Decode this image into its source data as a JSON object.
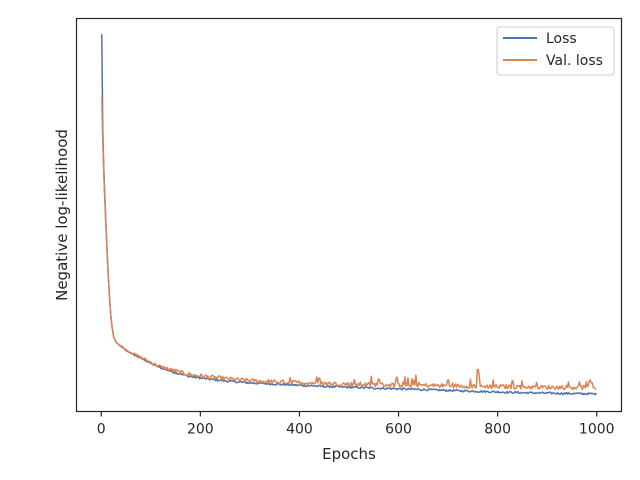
{
  "chart_data": {
    "type": "line",
    "title": "",
    "xlabel": "Epochs",
    "ylabel": "Negative log-likelihood",
    "xlim": [
      -50,
      1050
    ],
    "ylim": [
      0.0,
      1.0
    ],
    "y_tick_labels_shown": false,
    "x_ticks": [
      0,
      200,
      400,
      600,
      800,
      1000
    ],
    "x_tick_labels": [
      "0",
      "200",
      "400",
      "600",
      "800",
      "1000"
    ],
    "grid": false,
    "legend_position": "top-right",
    "series": [
      {
        "name": "Loss",
        "color": "#4c72b0",
        "x": [
          1,
          2,
          3,
          5,
          8,
          12,
          16,
          20,
          25,
          30,
          40,
          50,
          60,
          80,
          100,
          120,
          150,
          180,
          220,
          260,
          300,
          350,
          400,
          450,
          500,
          550,
          600,
          650,
          700,
          750,
          800,
          850,
          900,
          950,
          1000
        ],
        "y": [
          0.96,
          0.79,
          0.72,
          0.62,
          0.52,
          0.4,
          0.3,
          0.23,
          0.19,
          0.175,
          0.165,
          0.155,
          0.148,
          0.135,
          0.122,
          0.11,
          0.098,
          0.088,
          0.081,
          0.076,
          0.072,
          0.069,
          0.066,
          0.063,
          0.061,
          0.059,
          0.057,
          0.055,
          0.053,
          0.051,
          0.049,
          0.047,
          0.046,
          0.045,
          0.044
        ]
      },
      {
        "name": "Val. loss",
        "color": "#dd8452",
        "x": [
          1,
          2,
          3,
          5,
          8,
          12,
          16,
          20,
          25,
          30,
          40,
          50,
          60,
          80,
          100,
          120,
          150,
          180,
          220,
          260,
          300,
          350,
          400,
          450,
          500,
          550,
          600,
          650,
          700,
          750,
          800,
          850,
          900,
          950,
          1000
        ],
        "y": [
          0.8,
          0.74,
          0.69,
          0.61,
          0.51,
          0.4,
          0.3,
          0.23,
          0.19,
          0.176,
          0.166,
          0.156,
          0.149,
          0.137,
          0.124,
          0.112,
          0.101,
          0.092,
          0.086,
          0.081,
          0.077,
          0.074,
          0.072,
          0.07,
          0.068,
          0.067,
          0.066,
          0.065,
          0.064,
          0.063,
          0.062,
          0.061,
          0.06,
          0.06,
          0.059
        ],
        "spikes": [
          {
            "x": 440,
            "y": 0.085
          },
          {
            "x": 560,
            "y": 0.082
          },
          {
            "x": 635,
            "y": 0.092
          },
          {
            "x": 700,
            "y": 0.08
          },
          {
            "x": 760,
            "y": 0.107
          },
          {
            "x": 830,
            "y": 0.078
          },
          {
            "x": 990,
            "y": 0.073
          }
        ]
      }
    ]
  }
}
